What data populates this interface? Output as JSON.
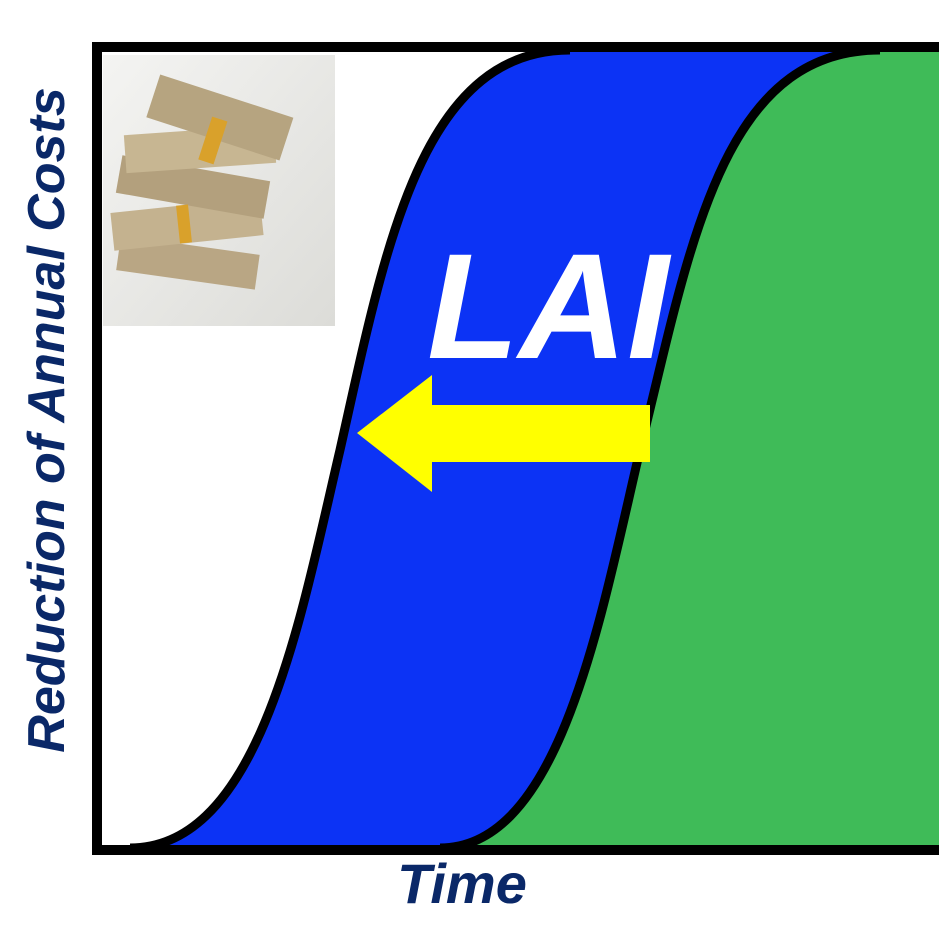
{
  "axes": {
    "y_label": "Reduction of Annual Costs",
    "x_label": "Time"
  },
  "curve_label": "LAI"
}
